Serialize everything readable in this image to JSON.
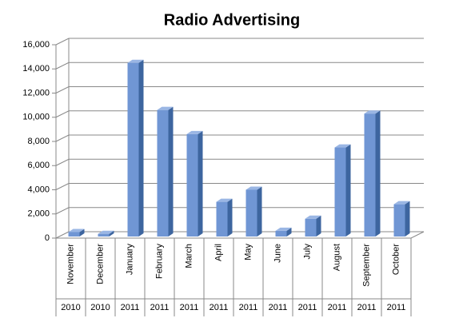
{
  "chart_data": {
    "type": "bar",
    "title": "Radio Advertising",
    "categories": [
      "November",
      "December",
      "January",
      "February",
      "March",
      "April",
      "May",
      "June",
      "July",
      "August",
      "September",
      "October"
    ],
    "category_groups": [
      "2010",
      "2010",
      "2011",
      "2011",
      "2011",
      "2011",
      "2011",
      "2011",
      "2011",
      "2011",
      "2011",
      "2011"
    ],
    "values": [
      500,
      350,
      14500,
      10600,
      8600,
      3000,
      4000,
      600,
      1600,
      7500,
      10300,
      2800
    ],
    "color": "#7096d4",
    "ylim": [
      0,
      16000
    ],
    "yticks": [
      0,
      {
        "value": 2000,
        "label": "2,000"
      },
      {
        "value": 4000,
        "label": "4,000"
      },
      {
        "value": 6000,
        "label": "6,000"
      },
      {
        "value": 8000,
        "label": "8,000"
      },
      {
        "value": 10000,
        "label": "10,000"
      },
      {
        "value": 12000,
        "label": "12,000"
      },
      {
        "value": 14000,
        "label": "14,000"
      },
      {
        "value": 16000,
        "label": "16,000"
      }
    ],
    "grid": true
  }
}
